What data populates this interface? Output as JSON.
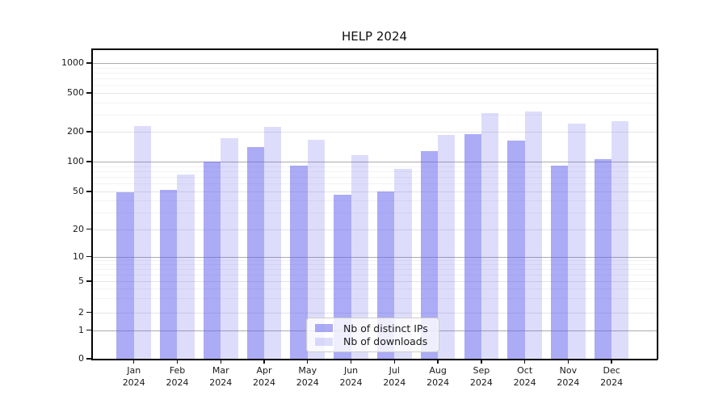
{
  "chart_data": {
    "type": "bar",
    "title": "HELP 2024",
    "categories": [
      "Jan 2024",
      "Feb 2024",
      "Mar 2024",
      "Apr 2024",
      "May 2024",
      "Jun 2024",
      "Jul 2024",
      "Aug 2024",
      "Sep 2024",
      "Oct 2024",
      "Nov 2024",
      "Dec 2024"
    ],
    "series": [
      {
        "name": "Nb of distinct IPs",
        "color": "#6060ee",
        "opacity": 0.53,
        "values": [
          49,
          52,
          100,
          140,
          91,
          46,
          50,
          127,
          190,
          164,
          91,
          106
        ]
      },
      {
        "name": "Nb of downloads",
        "color": "#6060ee",
        "opacity": 0.21,
        "values": [
          230,
          74,
          173,
          225,
          167,
          117,
          84,
          187,
          310,
          324,
          243,
          256
        ]
      }
    ],
    "y_ticks": [
      0,
      1,
      2,
      5,
      10,
      20,
      50,
      100,
      200,
      500,
      1000
    ],
    "y_scale": "symlog",
    "ylim": [
      0,
      1400
    ],
    "xlabel": "",
    "ylabel": "",
    "grid": true,
    "legend_position": "lower center"
  }
}
